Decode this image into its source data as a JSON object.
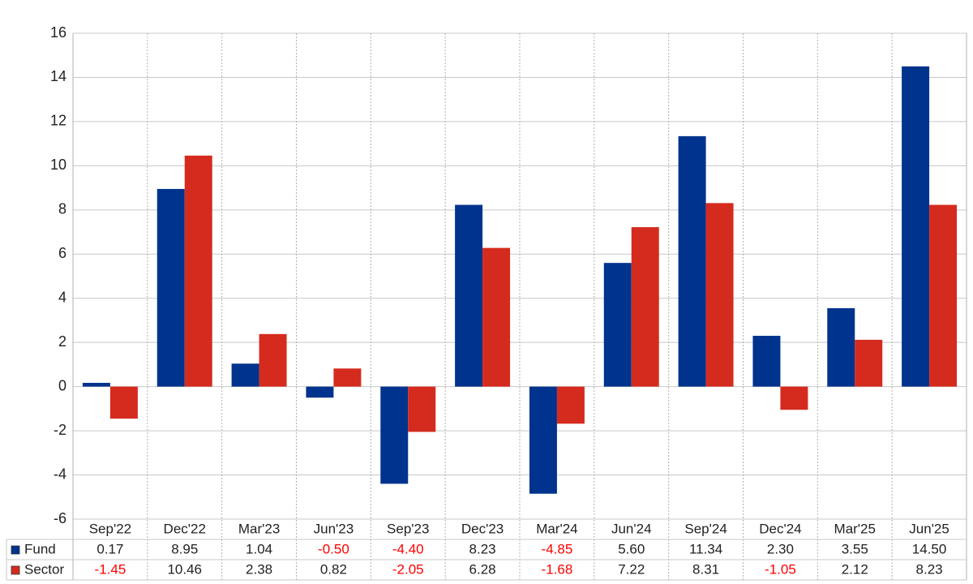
{
  "chart_data": {
    "type": "bar",
    "categories": [
      "Sep'22",
      "Dec'22",
      "Mar'23",
      "Jun'23",
      "Sep'23",
      "Dec'23",
      "Mar'24",
      "Jun'24",
      "Sep'24",
      "Dec'24",
      "Mar'25",
      "Jun'25"
    ],
    "series": [
      {
        "name": "Fund",
        "color": "#00338d",
        "values": [
          0.17,
          8.95,
          1.04,
          -0.5,
          -4.4,
          8.23,
          -4.85,
          5.6,
          11.34,
          2.3,
          3.55,
          14.5
        ],
        "value_labels": [
          "0.17",
          "8.95",
          "1.04",
          "-0.50",
          "-4.40",
          "8.23",
          "-4.85",
          "5.60",
          "11.34",
          "2.30",
          "3.55",
          "14.50"
        ]
      },
      {
        "name": "Sector",
        "color": "#d52b1e",
        "values": [
          -1.45,
          10.46,
          2.38,
          0.82,
          -2.05,
          6.28,
          -1.68,
          7.22,
          8.31,
          -1.05,
          2.12,
          8.23
        ],
        "value_labels": [
          "-1.45",
          "10.46",
          "2.38",
          "0.82",
          "-2.05",
          "6.28",
          "-1.68",
          "7.22",
          "8.31",
          "-1.05",
          "2.12",
          "8.23"
        ]
      }
    ],
    "ylim": [
      -6,
      16
    ],
    "yticks": [
      -6,
      -4,
      -2,
      0,
      2,
      4,
      6,
      8,
      10,
      12,
      14,
      16
    ],
    "grid": true,
    "negative_label_color": "#ff0000"
  }
}
